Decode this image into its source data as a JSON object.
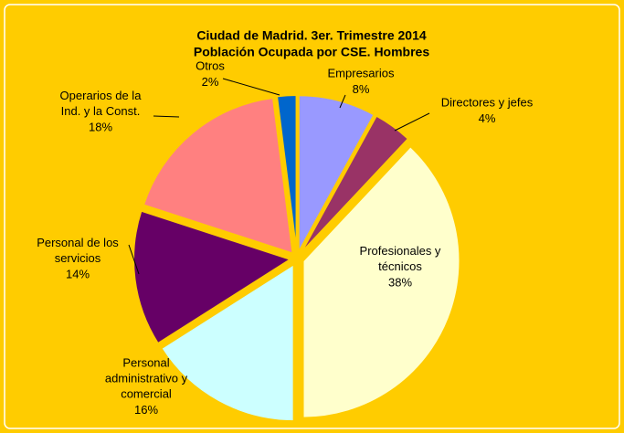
{
  "chart_data": {
    "type": "pie",
    "title": "Ciudad de Madrid. 3er. Trimestre 2014",
    "subtitle": "Población Ocupada por CSE. Hombres",
    "categories": [
      "Empresarios",
      "Directores y jefes",
      "Profesionales y técnicos",
      "Personal administrativo y comercial",
      "Personal de los servicios",
      "Operarios de la Ind. y la Const.",
      "Otros"
    ],
    "values": [
      8,
      4,
      38,
      16,
      14,
      18,
      2
    ],
    "value_labels": [
      "8%",
      "4%",
      "38%",
      "16%",
      "14%",
      "18%",
      "2%"
    ],
    "colors": [
      "#9999ff",
      "#993366",
      "#ffffcc",
      "#ccffff",
      "#660066",
      "#ff8080",
      "#0066cc"
    ],
    "background": "#ffcc00"
  }
}
